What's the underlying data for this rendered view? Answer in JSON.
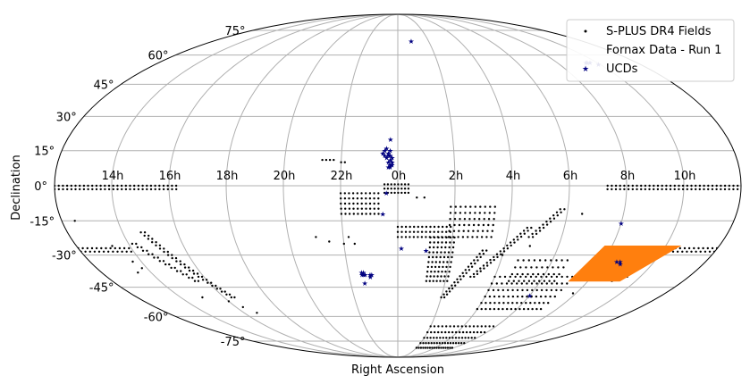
{
  "chart_data": {
    "type": "scatter",
    "projection": "mollweide",
    "xlabel": "Right Ascension",
    "ylabel": "Declination",
    "grid": true,
    "legend_position": "top-right",
    "x_tick_labels": [
      "14h",
      "16h",
      "18h",
      "20h",
      "22h",
      "0h",
      "2h",
      "4h",
      "6h",
      "8h",
      "10h"
    ],
    "x_tick_values": [
      -150,
      -120,
      -90,
      -60,
      -30,
      0,
      30,
      60,
      90,
      120,
      150
    ],
    "y_tick_labels": [
      "-75°",
      "-60°",
      "-45°",
      "-30°",
      "-15°",
      "0°",
      "15°",
      "30°",
      "45°",
      "60°",
      "75°"
    ],
    "y_tick_values": [
      -75,
      -60,
      -45,
      -30,
      -15,
      0,
      15,
      30,
      45,
      60,
      75
    ],
    "legend": [
      "S-PLUS DR4 Fields",
      "Fornax Data - Run 1",
      "UCDs"
    ],
    "colors": {
      "splus": "#000000",
      "fornax": "#ff7f0e",
      "ucds": "#000080",
      "grid": "#b0b0b0"
    },
    "series": [
      {
        "name": "S-PLUS DR4 Fields",
        "marker": "dot",
        "color": "#000000",
        "groups": [
          {
            "kind": "row",
            "y": 0,
            "x_from": -180,
            "x_to": -116,
            "step": 2.2
          },
          {
            "kind": "row",
            "y": -1.5,
            "x_from": -180,
            "x_to": -116,
            "step": 2.2
          },
          {
            "kind": "row",
            "y": 0,
            "x_from": 110,
            "x_to": 180,
            "step": 2.2
          },
          {
            "kind": "row",
            "y": -1.5,
            "x_from": 110,
            "x_to": 180,
            "step": 2.2
          },
          {
            "kind": "row",
            "y": -27,
            "x_from": -180,
            "x_to": -150,
            "step": 2.6
          },
          {
            "kind": "row",
            "y": -28.5,
            "x_from": -180,
            "x_to": -150,
            "step": 2.6
          },
          {
            "kind": "row",
            "y": -27,
            "x_from": 120,
            "x_to": 180,
            "step": 2.6
          },
          {
            "kind": "row",
            "y": -28.5,
            "x_from": 120,
            "x_to": 180,
            "step": 2.6
          },
          {
            "kind": "block",
            "x_from": -30,
            "x_to": -10,
            "y_from": -12,
            "y_to": -2,
            "step": 2.2
          },
          {
            "kind": "block",
            "x_from": -7,
            "x_to": 7,
            "y_from": -3,
            "y_to": 1,
            "step": 1.8
          },
          {
            "kind": "block",
            "x_from": 0,
            "x_to": 30,
            "y_from": -22,
            "y_to": -16,
            "step": 2.2
          },
          {
            "kind": "block",
            "x_from": 18,
            "x_to": 32,
            "y_from": -42,
            "y_to": -22,
            "step": 2.2
          },
          {
            "kind": "block",
            "x_from": 28,
            "x_to": 52,
            "y_from": -22,
            "y_to": -8,
            "step": 2.6
          },
          {
            "kind": "diag",
            "x1": -140,
            "y1": -20,
            "x2": -115,
            "y2": -50,
            "n": 22
          },
          {
            "kind": "diag",
            "x1": -148,
            "y1": -25,
            "x2": -128,
            "y2": -42,
            "n": 12
          },
          {
            "kind": "diag",
            "x1": 30,
            "y1": -50,
            "x2": 48,
            "y2": -28,
            "n": 16
          },
          {
            "kind": "diag",
            "x1": 45,
            "y1": -40,
            "x2": 70,
            "y2": -18,
            "n": 18
          },
          {
            "kind": "diag",
            "x1": 72,
            "y1": -22,
            "x2": 86,
            "y2": -10,
            "n": 10
          },
          {
            "kind": "block",
            "x_from": 30,
            "x_to": 90,
            "y_from": -80,
            "y_to": -64,
            "step": 3.6
          },
          {
            "kind": "block",
            "x_from": 60,
            "x_to": 108,
            "y_from": -56,
            "y_to": -40,
            "step": 3.2
          },
          {
            "kind": "block",
            "x_from": 70,
            "x_to": 100,
            "y_from": -42,
            "y_to": -30,
            "step": 3.2
          }
        ],
        "extra": [
          [
            -173,
            -15
          ],
          [
            -160,
            -26
          ],
          [
            -155,
            -33
          ],
          [
            -153,
            -36
          ],
          [
            -158,
            -38
          ],
          [
            -120,
            -52
          ],
          [
            -115,
            -55
          ],
          [
            -110,
            -58
          ],
          [
            -135,
            -50
          ],
          [
            -45,
            -22
          ],
          [
            -38,
            -24
          ],
          [
            -30,
            -25
          ],
          [
            -27,
            -22
          ],
          [
            -24,
            -25
          ],
          [
            -40,
            11
          ],
          [
            -38,
            11
          ],
          [
            -36,
            11
          ],
          [
            -34,
            11
          ],
          [
            -30,
            10
          ],
          [
            -28,
            10
          ],
          [
            10,
            -5
          ],
          [
            14,
            -5
          ],
          [
            60,
            -30
          ],
          [
            74,
            -26
          ],
          [
            135,
            -42
          ],
          [
            142,
            -40
          ],
          [
            118,
            -48
          ],
          [
            98,
            -12
          ]
        ]
      },
      {
        "name": "Fornax Data - Run 1",
        "marker": "polygon",
        "color": "#ff7f0e",
        "polygon": [
          [
            116,
            -26
          ],
          [
            158,
            -26
          ],
          [
            140,
            -42
          ],
          [
            108,
            -42
          ]
        ]
      },
      {
        "name": "UCDs",
        "marker": "star",
        "color": "#000080",
        "points": [
          [
            -8,
            14
          ],
          [
            -7,
            15
          ],
          [
            -6,
            16
          ],
          [
            -5,
            14
          ],
          [
            -5,
            13
          ],
          [
            -6,
            12
          ],
          [
            -4,
            15
          ],
          [
            -7,
            13
          ],
          [
            -3,
            12
          ],
          [
            -4,
            13
          ],
          [
            -5,
            10
          ],
          [
            -4,
            9
          ],
          [
            -3,
            10
          ],
          [
            -4,
            11
          ],
          [
            -3,
            9
          ],
          [
            -5,
            8
          ],
          [
            -4,
            8
          ],
          [
            -4,
            20
          ],
          [
            -6,
            -3
          ],
          [
            -8,
            -12
          ],
          [
            2,
            -27
          ],
          [
            16,
            -28
          ],
          [
            -21,
            -38
          ],
          [
            -22,
            -38
          ],
          [
            -20,
            -39
          ],
          [
            -21,
            -39
          ],
          [
            -22,
            -39
          ],
          [
            -17,
            -39
          ],
          [
            -16,
            -39
          ],
          [
            -17,
            -40
          ],
          [
            -21,
            -43
          ],
          [
            13,
            68
          ],
          [
            142,
            56
          ],
          [
            143,
            56
          ],
          [
            145,
            56
          ],
          [
            149,
            55
          ],
          [
            120,
            -16
          ],
          [
            128,
            -33
          ],
          [
            130,
            -33
          ],
          [
            131,
            -34
          ],
          [
            90,
            -49
          ]
        ]
      }
    ]
  }
}
